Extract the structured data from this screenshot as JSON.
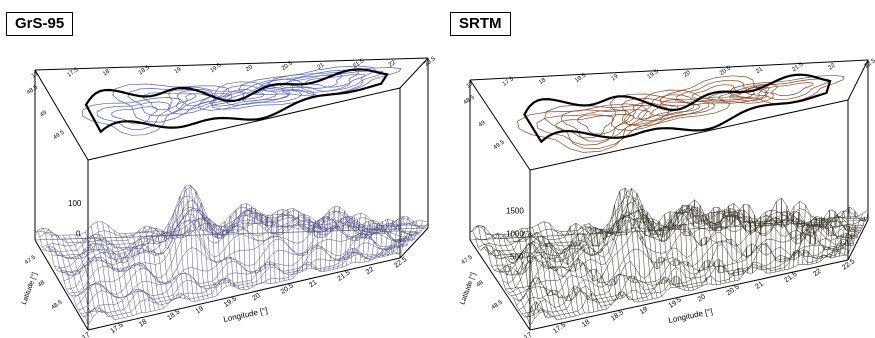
{
  "panels": [
    {
      "id": "left",
      "title": "GrS-95",
      "surface_color": "#5a5a8a",
      "contour_color": "#5a63c4",
      "z_ticks": [
        "100",
        "0"
      ],
      "lat_ticks": [
        "48.5",
        "48",
        "47.5"
      ],
      "lon_ticks": [
        "17",
        "17.5",
        "18",
        "18.5",
        "19",
        "19.5",
        "20",
        "20.5",
        "21",
        "21.5",
        "22",
        "22.5"
      ],
      "top_lon_ticks": [
        "17",
        "17.5",
        "18",
        "18.5",
        "19",
        "19.5",
        "20",
        "20.5",
        "21",
        "21.5",
        "22",
        "22.5"
      ],
      "top_lat_ticks": [
        "49.5",
        "49",
        "48.5"
      ],
      "xlabel": "Longitude [°]",
      "ylabel": "Latitude [°]"
    },
    {
      "id": "right",
      "title": "SRTM",
      "surface_color": "#3a3628",
      "contour_color": "#8a4a28",
      "z_ticks": [
        "1500",
        "1000",
        "500"
      ],
      "lat_ticks": [
        "48.5",
        "48",
        "47.5"
      ],
      "lon_ticks": [
        "17",
        "17.5",
        "18",
        "18.5",
        "19",
        "19.5",
        "20",
        "20.5",
        "21",
        "21.5",
        "22",
        "22.5"
      ],
      "top_lon_ticks": [
        "17",
        "17.5",
        "18",
        "18.5",
        "19",
        "19.5",
        "20",
        "20.5",
        "21",
        "21.5",
        "22",
        "22.5"
      ],
      "top_lat_ticks": [
        "49.5",
        "49",
        "48.5"
      ],
      "xlabel": "Longitude [°]",
      "ylabel": "Latitude [°]"
    }
  ]
}
